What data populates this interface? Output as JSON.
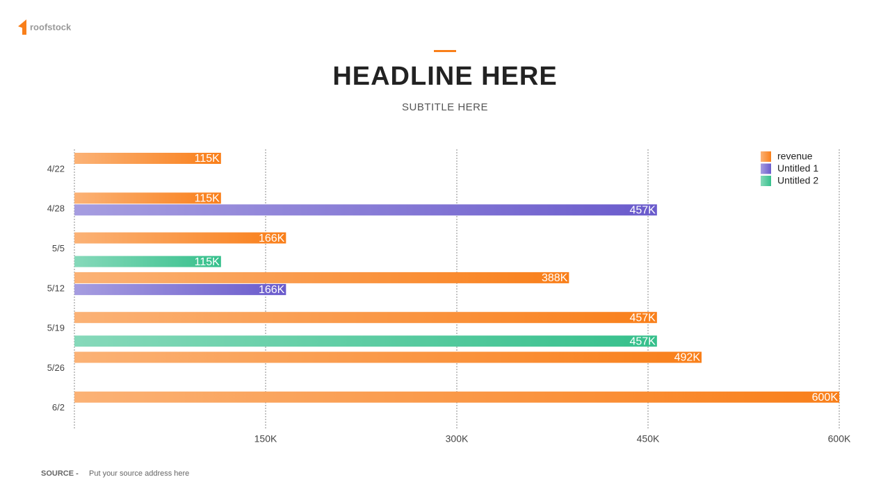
{
  "brand": "roofstock",
  "source": {
    "label": "SOURCE -",
    "text": "Put your source address here"
  },
  "chart_data": {
    "type": "bar",
    "orientation": "horizontal",
    "title": "HEADLINE HERE",
    "subtitle": "SUBTITLE HERE",
    "categories": [
      "4/22",
      "4/28",
      "5/5",
      "5/12",
      "5/19",
      "5/26",
      "6/2"
    ],
    "series": [
      {
        "name": "revenue",
        "color": "#f97f1a",
        "values": [
          115000,
          115000,
          166000,
          388000,
          457000,
          492000,
          600000
        ],
        "value_labels": [
          "115K",
          "115K",
          "166K",
          "388K",
          "457K",
          "492K",
          "600K"
        ]
      },
      {
        "name": "Untitled 1",
        "color": "#6a5bcc",
        "values": [
          null,
          457000,
          null,
          166000,
          null,
          null,
          null
        ],
        "value_labels": [
          null,
          "457K",
          null,
          "166K",
          null,
          null,
          null
        ]
      },
      {
        "name": "Untitled 2",
        "color": "#36c08c",
        "values": [
          null,
          null,
          115000,
          null,
          457000,
          null,
          null
        ],
        "value_labels": [
          null,
          null,
          "115K",
          null,
          "457K",
          null,
          null
        ]
      }
    ],
    "xlim": [
      0,
      600000
    ],
    "xticks": [
      {
        "value": 150000,
        "label": "150K"
      },
      {
        "value": 300000,
        "label": "300K"
      },
      {
        "value": 450000,
        "label": "450K"
      },
      {
        "value": 600000,
        "label": "600K"
      }
    ],
    "grid": true,
    "legend": "top-right"
  }
}
